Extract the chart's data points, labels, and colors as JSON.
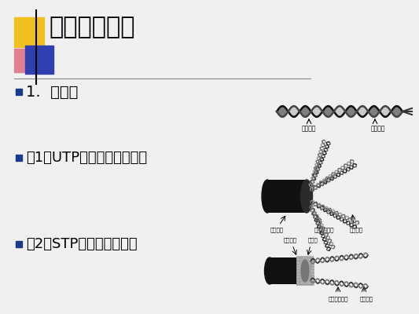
{
  "bg_color": "#f0f0f0",
  "title": "二、传输介质",
  "title_fontsize": 22,
  "title_color": "#000000",
  "subtitle1": "1.  双绞线",
  "subtitle1_fontsize": 14,
  "item1": "（1）UTP（非屏蔽双绞线）",
  "item1_fontsize": 13,
  "item2": "（2）STP（屏蔽双绞线）",
  "item2_fontsize": 13,
  "bullet_color": "#1a3a8a",
  "accent_yellow": "#f0c020",
  "accent_pink": "#e08090",
  "accent_blue": "#3040b0",
  "label1a": "绝缘外皮",
  "label1b": "铜芯导体",
  "label2a": "塑料护套",
  "label2b": "色码绝缘线对",
  "label2c": "铜芯导体",
  "label3a": "塑料护套",
  "label3b": "屏蔽层",
  "label3c": "色码绝缘外皮",
  "label3d": "铜芯导体"
}
